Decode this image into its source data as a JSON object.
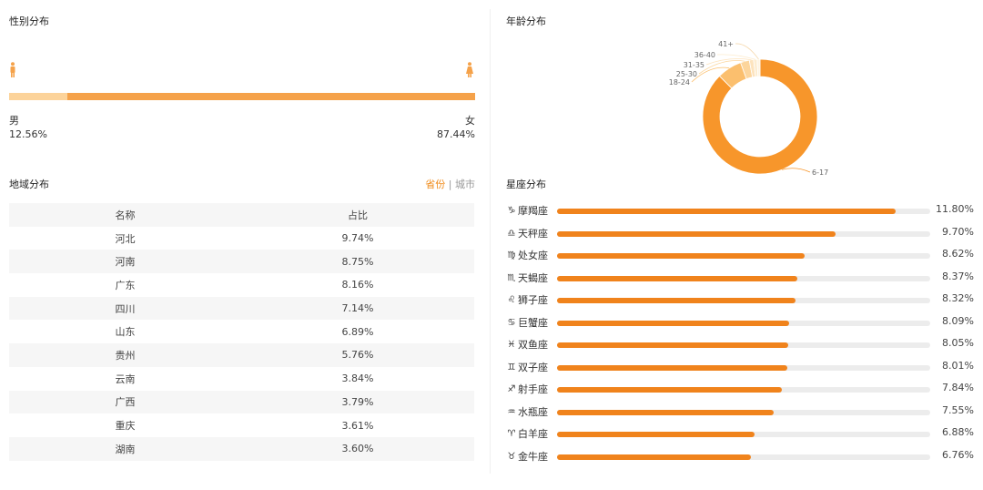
{
  "gender": {
    "title": "性别分布",
    "male_label": "男",
    "female_label": "女",
    "male_value": "12.56%",
    "female_value": "87.44%",
    "male_pct": 12.56,
    "female_pct": 87.44,
    "male_color": "#fcd39a",
    "female_color": "#f5a24a"
  },
  "region": {
    "title": "地域分布",
    "tab_province": "省份",
    "tab_sep": "|",
    "tab_city": "城市",
    "col_name": "名称",
    "col_share": "占比"
  },
  "age": {
    "title": "年龄分布"
  },
  "zodiac": {
    "title": "星座分布"
  },
  "chart_data": [
    {
      "type": "table",
      "title": "地域分布",
      "columns": [
        "名称",
        "占比"
      ],
      "rows": [
        [
          "河北",
          "9.74%"
        ],
        [
          "河南",
          "8.75%"
        ],
        [
          "广东",
          "8.16%"
        ],
        [
          "四川",
          "7.14%"
        ],
        [
          "山东",
          "6.89%"
        ],
        [
          "贵州",
          "5.76%"
        ],
        [
          "云南",
          "3.84%"
        ],
        [
          "广西",
          "3.79%"
        ],
        [
          "重庆",
          "3.61%"
        ],
        [
          "湖南",
          "3.60%"
        ]
      ]
    },
    {
      "type": "pie",
      "title": "年龄分布",
      "categories": [
        "6-17",
        "18-24",
        "25-30",
        "31-35",
        "36-40",
        "41+"
      ],
      "values": [
        87.5,
        7.0,
        2.5,
        1.2,
        1.0,
        0.8
      ],
      "colors": [
        "#f7962b",
        "#fbbf6e",
        "#fcd59c",
        "#fde3bd",
        "#fdeccf",
        "#fef3e1"
      ]
    },
    {
      "type": "bar",
      "title": "星座分布",
      "categories": [
        "摩羯座",
        "天秤座",
        "处女座",
        "天蝎座",
        "狮子座",
        "巨蟹座",
        "双鱼座",
        "双子座",
        "射手座",
        "水瓶座",
        "白羊座",
        "金牛座"
      ],
      "icons": [
        "♑",
        "♎",
        "♍",
        "♏",
        "♌",
        "♋",
        "♓",
        "♊",
        "♐",
        "♒",
        "♈",
        "♉"
      ],
      "labels": [
        "11.80%",
        "9.70%",
        "8.62%",
        "8.37%",
        "8.32%",
        "8.09%",
        "8.05%",
        "8.01%",
        "7.84%",
        "7.55%",
        "6.88%",
        "6.76%"
      ],
      "values": [
        11.8,
        9.7,
        8.62,
        8.37,
        8.32,
        8.09,
        8.05,
        8.01,
        7.84,
        7.55,
        6.88,
        6.76
      ],
      "xlim": [
        0,
        13
      ]
    }
  ]
}
